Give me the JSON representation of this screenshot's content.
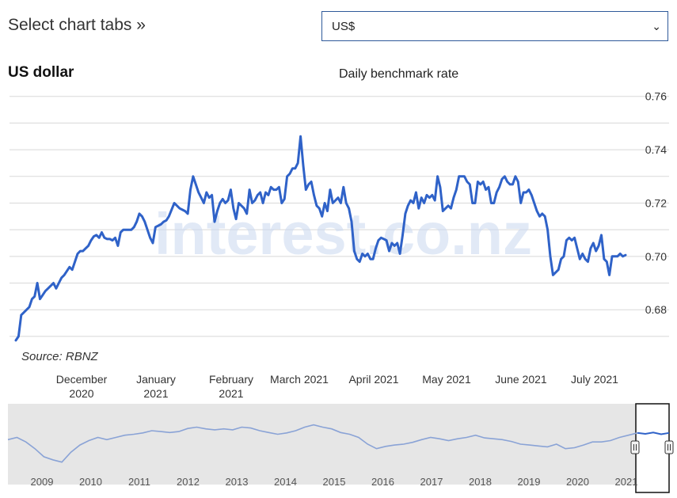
{
  "header": {
    "title": "Select chart tabs »"
  },
  "currency_select": {
    "value": "US$"
  },
  "chart_data": {
    "type": "line",
    "title": "US dollar",
    "subtitle": "Daily benchmark rate",
    "source": "Source: RBNZ",
    "watermark": "interest.co.nz",
    "ylim": [
      0.667,
      0.762
    ],
    "y_ticks": [
      "0.76",
      "0.74",
      "0.72",
      "0.70",
      "0.68"
    ],
    "y_tick_values": [
      0.76,
      0.74,
      0.72,
      0.7,
      0.68
    ],
    "x_tick_labels": [
      [
        "December",
        "2020"
      ],
      [
        "January",
        "2021"
      ],
      [
        "February",
        "2021"
      ],
      [
        "March 2021"
      ],
      [
        "April 2021"
      ],
      [
        "May 2021"
      ],
      [
        "June 2021"
      ],
      [
        "July 2021"
      ]
    ],
    "grid": true,
    "series": [
      {
        "color": "#2f62c8",
        "values": [
          0.6685,
          0.67,
          0.678,
          0.679,
          0.68,
          0.681,
          0.684,
          0.685,
          0.69,
          0.684,
          0.6855,
          0.687,
          0.688,
          0.689,
          0.69,
          0.688,
          0.69,
          0.692,
          0.693,
          0.6945,
          0.696,
          0.695,
          0.698,
          0.701,
          0.702,
          0.702,
          0.703,
          0.704,
          0.706,
          0.7075,
          0.708,
          0.707,
          0.709,
          0.707,
          0.7065,
          0.7065,
          0.706,
          0.707,
          0.704,
          0.709,
          0.71,
          0.71,
          0.71,
          0.71,
          0.711,
          0.713,
          0.716,
          0.715,
          0.713,
          0.71,
          0.707,
          0.705,
          0.711,
          0.7115,
          0.712,
          0.713,
          0.7135,
          0.715,
          0.7175,
          0.72,
          0.719,
          0.718,
          0.7175,
          0.717,
          0.716,
          0.725,
          0.73,
          0.727,
          0.724,
          0.722,
          0.72,
          0.724,
          0.722,
          0.723,
          0.713,
          0.717,
          0.72,
          0.7215,
          0.72,
          0.721,
          0.725,
          0.718,
          0.714,
          0.72,
          0.719,
          0.718,
          0.716,
          0.725,
          0.72,
          0.721,
          0.723,
          0.724,
          0.72,
          0.724,
          0.723,
          0.726,
          0.725,
          0.725,
          0.726,
          0.72,
          0.7215,
          0.73,
          0.731,
          0.733,
          0.733,
          0.735,
          0.745,
          0.734,
          0.725,
          0.727,
          0.728,
          0.723,
          0.719,
          0.718,
          0.715,
          0.72,
          0.717,
          0.725,
          0.72,
          0.721,
          0.722,
          0.72,
          0.726,
          0.72,
          0.718,
          0.713,
          0.702,
          0.699,
          0.698,
          0.701,
          0.7,
          0.701,
          0.699,
          0.699,
          0.703,
          0.706,
          0.707,
          0.7065,
          0.706,
          0.702,
          0.705,
          0.704,
          0.705,
          0.701,
          0.708,
          0.716,
          0.719,
          0.721,
          0.72,
          0.724,
          0.718,
          0.722,
          0.72,
          0.723,
          0.722,
          0.723,
          0.721,
          0.73,
          0.726,
          0.717,
          0.718,
          0.719,
          0.718,
          0.722,
          0.725,
          0.73,
          0.73,
          0.73,
          0.728,
          0.727,
          0.72,
          0.72,
          0.728,
          0.727,
          0.728,
          0.725,
          0.726,
          0.72,
          0.72,
          0.724,
          0.726,
          0.729,
          0.73,
          0.728,
          0.727,
          0.727,
          0.73,
          0.728,
          0.72,
          0.724,
          0.724,
          0.725,
          0.723,
          0.72,
          0.717,
          0.715,
          0.716,
          0.715,
          0.71,
          0.7,
          0.693,
          0.694,
          0.695,
          0.699,
          0.7,
          0.706,
          0.707,
          0.706,
          0.707,
          0.703,
          0.699,
          0.701,
          0.699,
          0.698,
          0.703,
          0.705,
          0.702,
          0.704,
          0.708,
          0.699,
          0.698,
          0.693,
          0.7,
          0.7,
          0.7,
          0.701,
          0.7,
          0.7005
        ]
      }
    ]
  },
  "navigator": {
    "year_labels": [
      "2009",
      "2010",
      "2011",
      "2012",
      "2013",
      "2014",
      "2015",
      "2016",
      "2017",
      "2018",
      "2019",
      "2020",
      "2021"
    ],
    "values": [
      0.7,
      0.705,
      0.695,
      0.68,
      0.662,
      0.655,
      0.65,
      0.672,
      0.688,
      0.698,
      0.705,
      0.7,
      0.705,
      0.71,
      0.712,
      0.715,
      0.72,
      0.718,
      0.716,
      0.718,
      0.725,
      0.728,
      0.724,
      0.722,
      0.724,
      0.722,
      0.728,
      0.726,
      0.72,
      0.716,
      0.712,
      0.715,
      0.72,
      0.728,
      0.733,
      0.728,
      0.724,
      0.716,
      0.712,
      0.705,
      0.69,
      0.68,
      0.685,
      0.688,
      0.69,
      0.694,
      0.7,
      0.705,
      0.702,
      0.698,
      0.702,
      0.705,
      0.71,
      0.704,
      0.702,
      0.7,
      0.696,
      0.69,
      0.688,
      0.686,
      0.684,
      0.69,
      0.68,
      0.682,
      0.688,
      0.695,
      0.695,
      0.698,
      0.705,
      0.71,
      0.715
    ]
  }
}
